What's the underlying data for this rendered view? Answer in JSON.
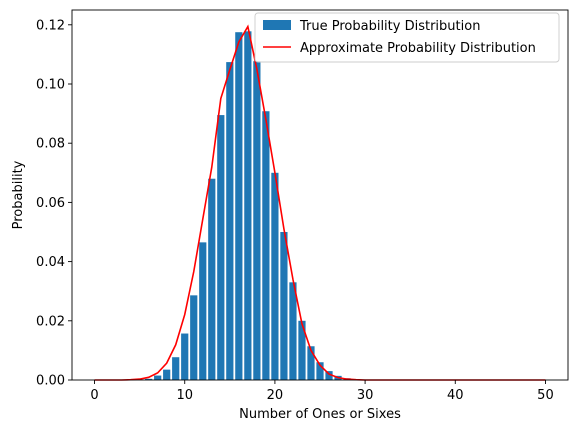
{
  "chart_data": {
    "type": "bar",
    "xlabel": "Number of Ones or Sixes",
    "ylabel": "Probability",
    "xlim": [
      -2.5,
      52.5
    ],
    "ylim": [
      0,
      0.125
    ],
    "x_ticks": [
      0,
      10,
      20,
      30,
      40,
      50
    ],
    "y_ticks": [
      0.0,
      0.02,
      0.04,
      0.06,
      0.08,
      0.1,
      0.12
    ],
    "y_tick_labels": [
      "0.00",
      "0.02",
      "0.04",
      "0.06",
      "0.08",
      "0.10",
      "0.12"
    ],
    "grid": false,
    "legend_position": "top-right",
    "colors": {
      "bars": "#1f77b4",
      "line": "#ff0000"
    },
    "series": [
      {
        "name": "True Probability Distribution",
        "type": "bar",
        "x": [
          0,
          1,
          2,
          3,
          4,
          5,
          6,
          7,
          8,
          9,
          10,
          11,
          12,
          13,
          14,
          15,
          16,
          17,
          18,
          19,
          20,
          21,
          22,
          23,
          24,
          25,
          26,
          27,
          28,
          29,
          30,
          31,
          32,
          33,
          34,
          35,
          36,
          37,
          38,
          39,
          40,
          41,
          42,
          43,
          44,
          45,
          46,
          47,
          48,
          49,
          50
        ],
        "values": [
          0.0,
          0.0,
          0.0,
          0.0,
          0.0,
          0.0001,
          0.0004,
          0.0015,
          0.0035,
          0.0077,
          0.0157,
          0.0286,
          0.0465,
          0.068,
          0.0895,
          0.1074,
          0.1175,
          0.1178,
          0.1077,
          0.0908,
          0.07,
          0.05,
          0.033,
          0.02,
          0.0114,
          0.006,
          0.003,
          0.0014,
          0.0006,
          0.0002,
          0.0001,
          0.0,
          0.0,
          0.0,
          0.0,
          0.0,
          0.0,
          0.0,
          0.0,
          0.0,
          0.0,
          0.0,
          0.0,
          0.0,
          0.0,
          0.0,
          0.0,
          0.0,
          0.0,
          0.0,
          0.0
        ]
      },
      {
        "name": "Approximate Probability Distribution",
        "type": "line",
        "x": [
          0,
          1,
          2,
          3,
          4,
          5,
          6,
          7,
          8,
          9,
          10,
          11,
          12,
          13,
          14,
          15,
          16,
          17,
          18,
          19,
          20,
          21,
          22,
          23,
          24,
          25,
          26,
          27,
          28,
          29,
          30,
          31,
          32,
          33,
          34,
          35,
          36,
          37,
          38,
          39,
          40,
          41,
          42,
          43,
          44,
          45,
          46,
          47,
          48,
          49,
          50
        ],
        "values": [
          0.0,
          0.0,
          0.0,
          0.0,
          0.0001,
          0.0003,
          0.0009,
          0.0024,
          0.0057,
          0.0119,
          0.0221,
          0.0366,
          0.0543,
          0.0719,
          0.0951,
          0.1048,
          0.1142,
          0.1194,
          0.105,
          0.088,
          0.07,
          0.051,
          0.034,
          0.019,
          0.01,
          0.005,
          0.002,
          0.0008,
          0.0003,
          0.0001,
          0.0,
          0.0,
          0.0,
          0.0,
          0.0,
          0.0,
          0.0,
          0.0,
          0.0,
          0.0,
          0.0,
          0.0,
          0.0,
          0.0,
          0.0,
          0.0,
          0.0,
          0.0,
          0.0,
          0.0,
          0.0
        ]
      }
    ]
  }
}
